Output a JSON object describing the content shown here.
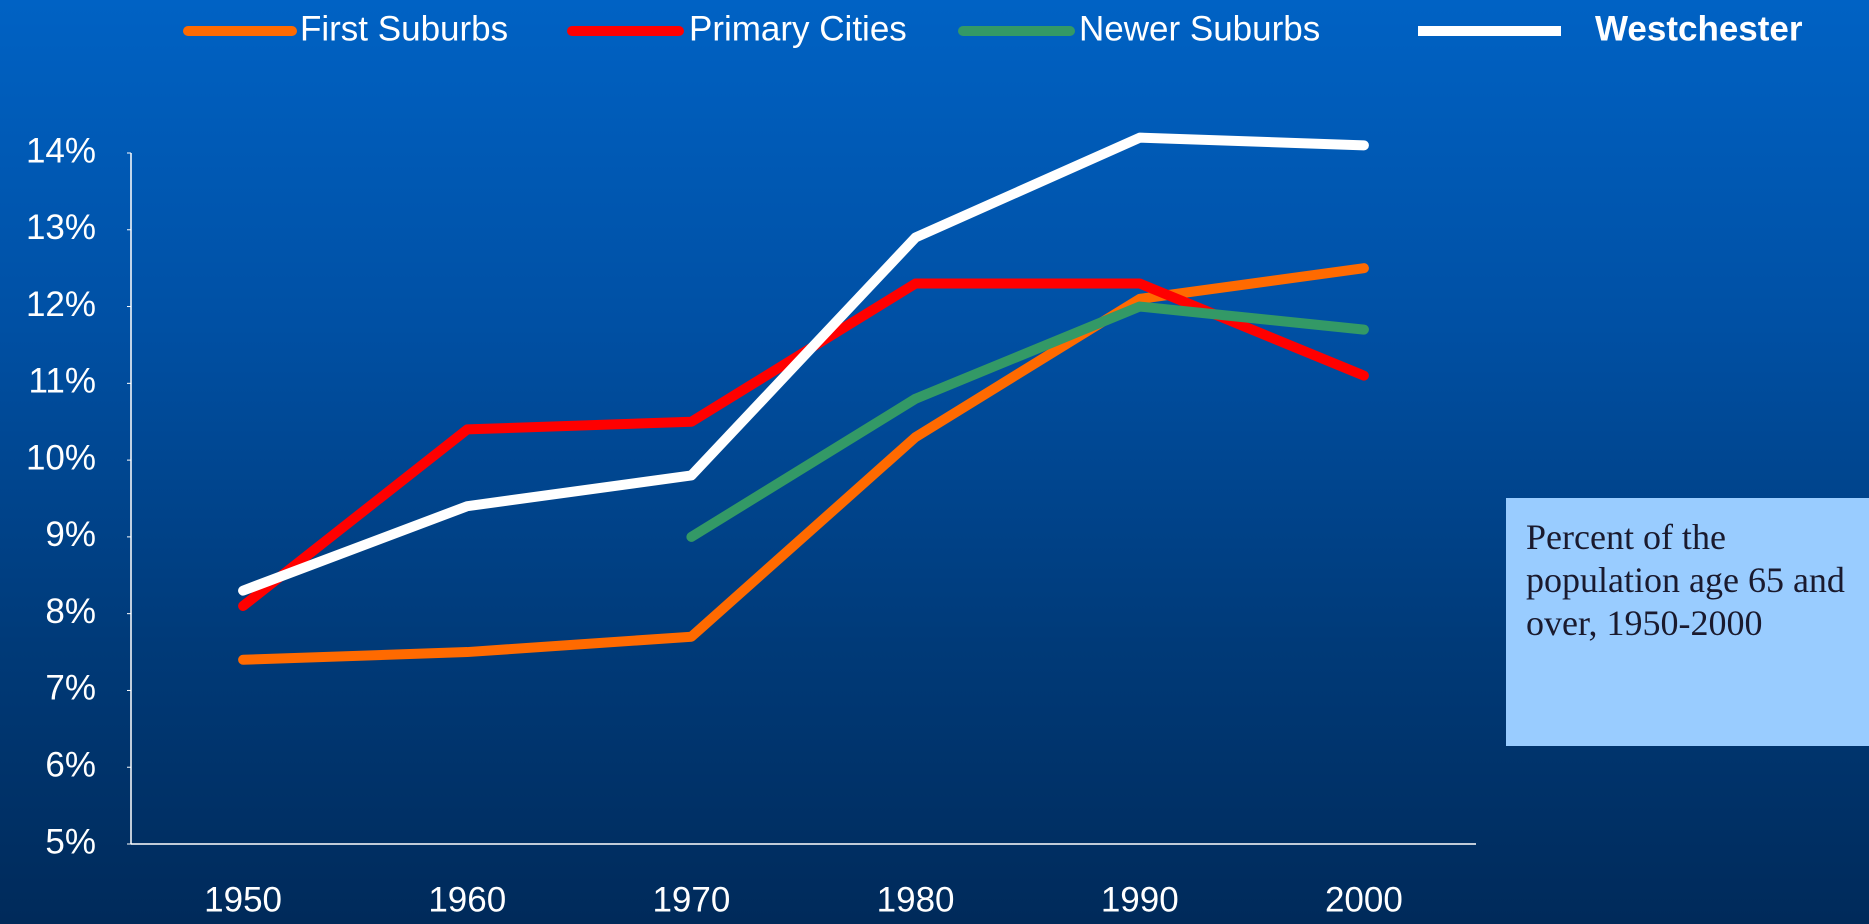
{
  "chart_data": {
    "type": "line",
    "annotation": "Percent of the population age 65 and over, 1950-2000",
    "categories": [
      "1950",
      "1960",
      "1970",
      "1980",
      "1990",
      "2000"
    ],
    "series": [
      {
        "name": "First Suburbs",
        "color": "#ff6a00",
        "values": [
          7.4,
          7.5,
          7.7,
          10.3,
          12.1,
          12.5
        ]
      },
      {
        "name": "Primary Cities",
        "color": "#ff0000",
        "values": [
          8.1,
          10.4,
          10.5,
          12.3,
          12.3,
          11.1
        ]
      },
      {
        "name": "Newer Suburbs",
        "color": "#339966",
        "values": [
          null,
          null,
          9.0,
          10.8,
          12.0,
          11.7
        ]
      },
      {
        "name": "Westchester",
        "color": "#ffffff",
        "bold": true,
        "values": [
          8.3,
          9.4,
          9.8,
          12.9,
          14.2,
          14.1
        ]
      }
    ],
    "ylim": [
      5,
      14
    ],
    "yticks": [
      {
        "value": 5,
        "label": "5%"
      },
      {
        "value": 6,
        "label": "6%"
      },
      {
        "value": 7,
        "label": "7%"
      },
      {
        "value": 8,
        "label": "8%"
      },
      {
        "value": 9,
        "label": "9%"
      },
      {
        "value": 10,
        "label": "10%"
      },
      {
        "value": 11,
        "label": "11%"
      },
      {
        "value": 12,
        "label": "12%"
      },
      {
        "value": 13,
        "label": "13%"
      },
      {
        "value": 14,
        "label": "14%"
      }
    ],
    "grid": false,
    "legend": "top"
  }
}
